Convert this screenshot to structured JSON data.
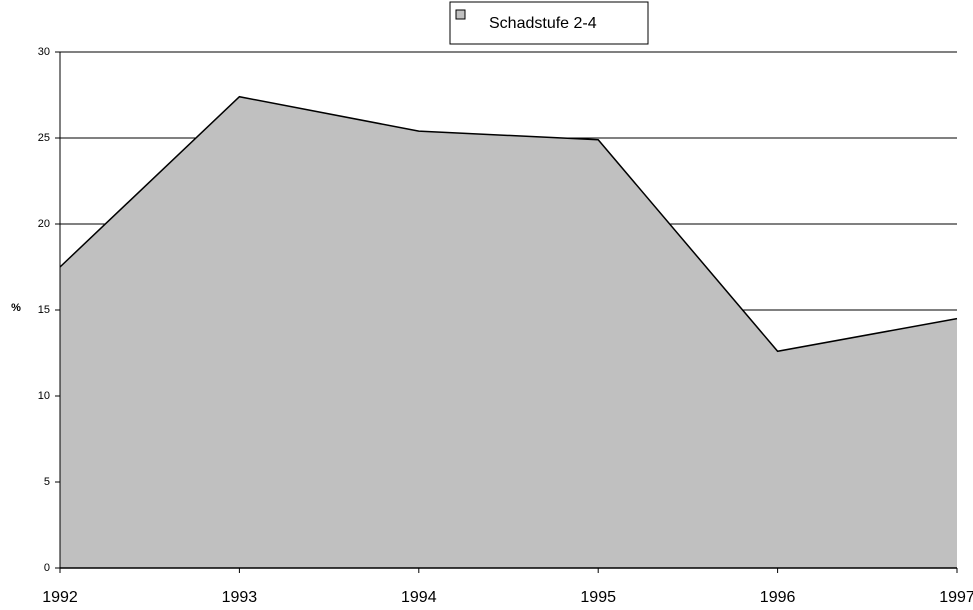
{
  "chart_data": {
    "type": "area",
    "y_label": "%",
    "categories": [
      "1992",
      "1993",
      "1994",
      "1995",
      "1996",
      "1997"
    ],
    "series": [
      {
        "name": "Schadstufe 2-4",
        "color": "#c0c0c0",
        "values": [
          17.5,
          27.4,
          25.4,
          24.9,
          12.6,
          14.5
        ]
      }
    ],
    "ylim": [
      0,
      30
    ],
    "yticks": [
      0,
      5,
      10,
      15,
      20,
      25,
      30
    ],
    "grid": true,
    "legend": "top"
  }
}
